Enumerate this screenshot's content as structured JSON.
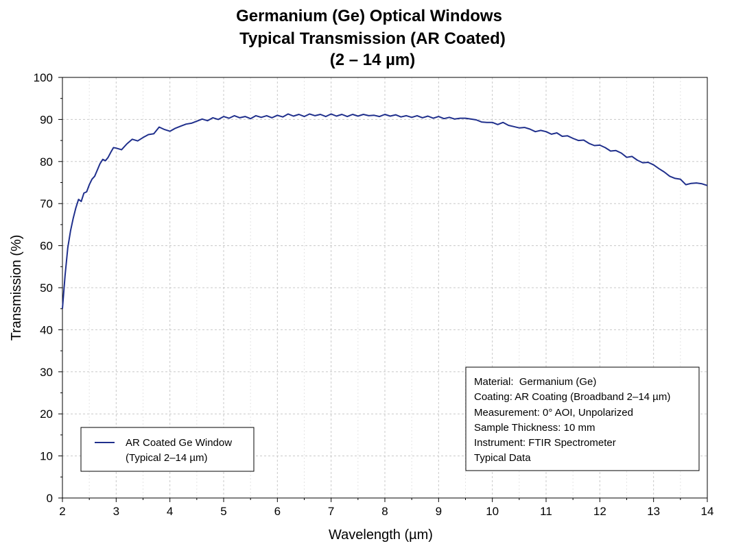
{
  "chart_data": {
    "type": "line",
    "title": "Germanium (Ge) Optical Windows",
    "subtitle": "Typical Transmission (AR Coated)",
    "subtitle2": "(2 – 14 µm)",
    "xlabel": "Wavelength (µm)",
    "ylabel": "Transmission (%)",
    "xlim": [
      2,
      14
    ],
    "ylim": [
      0,
      100
    ],
    "x_ticks": [
      "2",
      "3",
      "4",
      "5",
      "6",
      "7",
      "8",
      "9",
      "10",
      "11",
      "12",
      "13",
      "14"
    ],
    "y_ticks": [
      "0",
      "10",
      "20",
      "30",
      "40",
      "50",
      "60",
      "70",
      "80",
      "90",
      "100"
    ],
    "grid": true,
    "line_color": "#1f2f8c",
    "legend": {
      "position": "bottom-left",
      "entries": [
        {
          "line1": "AR Coated Ge Window",
          "line2": "(Typical 2–14 µm)"
        }
      ]
    },
    "info_box": {
      "position": "bottom-right",
      "lines": [
        "Material:  Germanium (Ge)",
        "Coating: AR Coating (Broadband 2–14 µm)",
        "Measurement: 0° AOI, Unpolarized",
        "Sample Thickness: 10 mm",
        "Instrument: FTIR Spectrometer",
        "Typical Data"
      ]
    },
    "series": [
      {
        "name": "AR Coated Ge Window",
        "x": [
          2.0,
          2.05,
          2.1,
          2.15,
          2.2,
          2.25,
          2.3,
          2.35,
          2.4,
          2.45,
          2.5,
          2.55,
          2.6,
          2.65,
          2.7,
          2.75,
          2.8,
          2.85,
          2.9,
          2.95,
          3.0,
          3.1,
          3.2,
          3.3,
          3.4,
          3.5,
          3.6,
          3.7,
          3.8,
          3.9,
          4.0,
          4.1,
          4.2,
          4.3,
          4.4,
          4.5,
          4.6,
          4.7,
          4.8,
          4.9,
          5.0,
          5.1,
          5.2,
          5.3,
          5.4,
          5.5,
          5.6,
          5.7,
          5.8,
          5.9,
          6.0,
          6.1,
          6.2,
          6.3,
          6.4,
          6.5,
          6.6,
          6.7,
          6.8,
          6.9,
          7.0,
          7.1,
          7.2,
          7.3,
          7.4,
          7.5,
          7.6,
          7.7,
          7.8,
          7.9,
          8.0,
          8.1,
          8.2,
          8.3,
          8.4,
          8.5,
          8.6,
          8.7,
          8.8,
          8.9,
          9.0,
          9.1,
          9.2,
          9.3,
          9.4,
          9.5,
          9.6,
          9.7,
          9.8,
          9.9,
          10.0,
          10.1,
          10.2,
          10.3,
          10.4,
          10.5,
          10.6,
          10.7,
          10.8,
          10.9,
          11.0,
          11.1,
          11.2,
          11.3,
          11.4,
          11.5,
          11.6,
          11.7,
          11.8,
          11.9,
          12.0,
          12.1,
          12.2,
          12.3,
          12.4,
          12.5,
          12.6,
          12.7,
          12.8,
          12.9,
          13.0,
          13.1,
          13.2,
          13.3,
          13.4,
          13.5,
          13.6,
          13.7,
          13.8,
          13.9,
          14.0
        ],
        "y": [
          45.0,
          53.0,
          59.5,
          63.5,
          66.5,
          69.0,
          71.0,
          70.5,
          72.5,
          72.8,
          74.5,
          75.8,
          76.5,
          78.0,
          79.5,
          80.5,
          80.2,
          81.0,
          82.2,
          83.3,
          83.2,
          82.8,
          84.2,
          85.3,
          84.9,
          85.7,
          86.4,
          86.6,
          88.2,
          87.6,
          87.2,
          87.9,
          88.4,
          88.9,
          89.1,
          89.6,
          90.1,
          89.7,
          90.4,
          90.0,
          90.7,
          90.3,
          90.9,
          90.4,
          90.7,
          90.2,
          90.9,
          90.5,
          90.9,
          90.4,
          91.0,
          90.6,
          91.3,
          90.8,
          91.2,
          90.7,
          91.3,
          90.9,
          91.2,
          90.7,
          91.3,
          90.8,
          91.2,
          90.7,
          91.2,
          90.8,
          91.2,
          90.9,
          91.0,
          90.7,
          91.2,
          90.8,
          91.1,
          90.6,
          90.9,
          90.5,
          90.9,
          90.4,
          90.8,
          90.3,
          90.7,
          90.2,
          90.5,
          90.1,
          90.3,
          90.3,
          90.1,
          89.9,
          89.4,
          89.3,
          89.3,
          88.8,
          89.3,
          88.6,
          88.3,
          88.0,
          88.1,
          87.7,
          87.1,
          87.4,
          87.1,
          86.5,
          86.8,
          86.0,
          86.1,
          85.5,
          85.0,
          85.1,
          84.3,
          83.8,
          83.9,
          83.3,
          82.5,
          82.6,
          82.0,
          81.0,
          81.2,
          80.3,
          79.7,
          79.8,
          79.2,
          78.3,
          77.5,
          76.5,
          76.0,
          75.8,
          74.5,
          74.8,
          74.9,
          74.7,
          74.3
        ]
      }
    ]
  }
}
